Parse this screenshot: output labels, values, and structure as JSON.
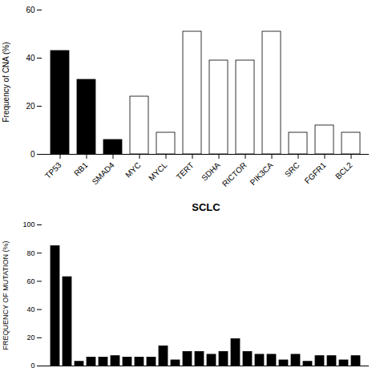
{
  "chart_data": [
    {
      "type": "bar",
      "categories": [
        "TP53",
        "RB1",
        "SMAD4",
        "MYC",
        "MYCL",
        "TERT",
        "SDHA",
        "RICTOR",
        "PIK3CA",
        "SRC",
        "FGFR1",
        "BCL2"
      ],
      "values": [
        43,
        31,
        6,
        24,
        9,
        51,
        39,
        39,
        51,
        9,
        12,
        9
      ],
      "colors": [
        "black",
        "black",
        "black",
        "white",
        "white",
        "white",
        "white",
        "white",
        "white",
        "white",
        "white",
        "white"
      ],
      "ylabel": "Frequency of CNA (%)",
      "ylim": [
        0,
        60
      ],
      "yticks": [
        0,
        20,
        40,
        60
      ]
    },
    {
      "type": "bar",
      "title": "SCLC",
      "categories": [
        null,
        null,
        null,
        null,
        null,
        null,
        null,
        null,
        null,
        null,
        null,
        null,
        null,
        null,
        null,
        null,
        null,
        null,
        null,
        null,
        null,
        null,
        null,
        null,
        null,
        null
      ],
      "values": [
        85,
        63,
        3,
        6,
        6,
        7,
        6,
        6,
        6,
        14,
        4,
        10,
        10,
        8,
        10,
        19,
        10,
        8,
        8,
        4,
        8,
        3,
        7,
        7,
        4,
        7
      ],
      "color": "black",
      "ylabel": "FREQUENCY OF MUTATION (%)",
      "ylim": [
        0,
        100
      ],
      "yticks": [
        0,
        20,
        40,
        60,
        80,
        100
      ],
      "tick_labels": "y"
    }
  ]
}
